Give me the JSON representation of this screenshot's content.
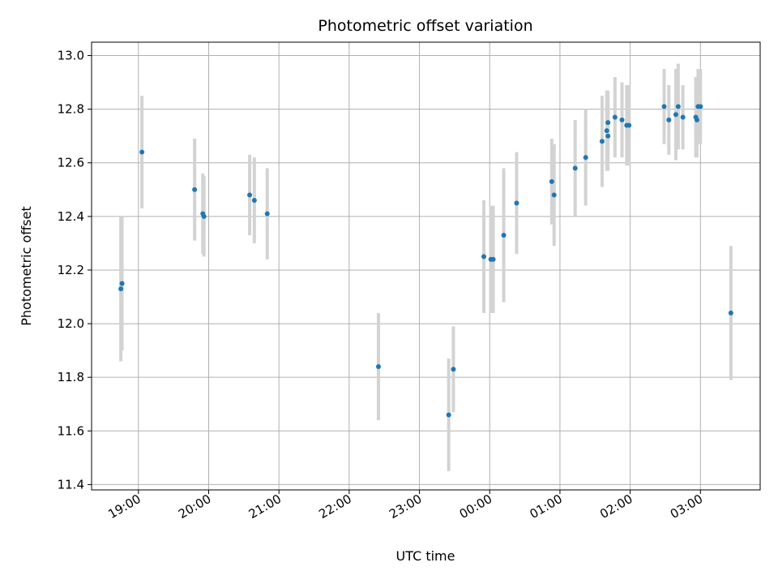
{
  "chart_data": {
    "type": "scatter",
    "title": "Photometric offset variation",
    "xlabel": "UTC time",
    "ylabel": "Photometric offset",
    "xlim": [
      "18:20",
      "03:51"
    ],
    "ylim": [
      11.38,
      13.05
    ],
    "x_tick_labels": [
      "19:00",
      "20:00",
      "21:00",
      "22:00",
      "23:00",
      "00:00",
      "01:00",
      "02:00",
      "03:00"
    ],
    "x_tick_times": [
      "19:00",
      "20:00",
      "21:00",
      "22:00",
      "23:00",
      "00:00",
      "01:00",
      "02:00",
      "03:00"
    ],
    "y_ticks": [
      11.4,
      11.6,
      11.8,
      12.0,
      12.2,
      12.4,
      12.6,
      12.8,
      13.0
    ],
    "grid": true,
    "colors": {
      "marker": "#1f77b4",
      "errorbar": "#d3d3d3",
      "grid": "#b0b0b0"
    },
    "points": [
      {
        "x": "18:45",
        "y": 12.13,
        "err": 0.27
      },
      {
        "x": "18:46",
        "y": 12.15,
        "err": 0.25
      },
      {
        "x": "19:03",
        "y": 12.64,
        "err": 0.21
      },
      {
        "x": "19:48",
        "y": 12.5,
        "err": 0.19
      },
      {
        "x": "19:55",
        "y": 12.41,
        "err": 0.15
      },
      {
        "x": "19:56",
        "y": 12.4,
        "err": 0.15
      },
      {
        "x": "20:35",
        "y": 12.48,
        "err": 0.15
      },
      {
        "x": "20:39",
        "y": 12.46,
        "err": 0.16
      },
      {
        "x": "20:50",
        "y": 12.41,
        "err": 0.17
      },
      {
        "x": "22:25",
        "y": 11.84,
        "err": 0.2
      },
      {
        "x": "23:25",
        "y": 11.66,
        "err": 0.21
      },
      {
        "x": "23:29",
        "y": 11.83,
        "err": 0.16
      },
      {
        "x": "23:55",
        "y": 12.25,
        "err": 0.21
      },
      {
        "x": "00:01",
        "y": 12.24,
        "err": 0.2
      },
      {
        "x": "00:03",
        "y": 12.24,
        "err": 0.2
      },
      {
        "x": "00:12",
        "y": 12.33,
        "err": 0.25
      },
      {
        "x": "00:23",
        "y": 12.45,
        "err": 0.19
      },
      {
        "x": "00:53",
        "y": 12.53,
        "err": 0.16
      },
      {
        "x": "00:55",
        "y": 12.48,
        "err": 0.19
      },
      {
        "x": "01:13",
        "y": 12.58,
        "err": 0.18
      },
      {
        "x": "01:22",
        "y": 12.62,
        "err": 0.18
      },
      {
        "x": "01:36",
        "y": 12.68,
        "err": 0.17
      },
      {
        "x": "01:40",
        "y": 12.72,
        "err": 0.15
      },
      {
        "x": "01:41",
        "y": 12.75,
        "err": 0.12
      },
      {
        "x": "01:41",
        "y": 12.7,
        "err": 0.13
      },
      {
        "x": "01:47",
        "y": 12.77,
        "err": 0.15
      },
      {
        "x": "01:53",
        "y": 12.76,
        "err": 0.14
      },
      {
        "x": "01:57",
        "y": 12.74,
        "err": 0.15
      },
      {
        "x": "01:59",
        "y": 12.74,
        "err": 0.15
      },
      {
        "x": "02:29",
        "y": 12.81,
        "err": 0.14
      },
      {
        "x": "02:33",
        "y": 12.76,
        "err": 0.13
      },
      {
        "x": "02:39",
        "y": 12.78,
        "err": 0.17
      },
      {
        "x": "02:41",
        "y": 12.81,
        "err": 0.16
      },
      {
        "x": "02:45",
        "y": 12.77,
        "err": 0.12
      },
      {
        "x": "02:56",
        "y": 12.77,
        "err": 0.15
      },
      {
        "x": "02:57",
        "y": 12.76,
        "err": 0.14
      },
      {
        "x": "02:58",
        "y": 12.81,
        "err": 0.14
      },
      {
        "x": "03:00",
        "y": 12.81,
        "err": 0.14
      },
      {
        "x": "03:26",
        "y": 12.04,
        "err": 0.25
      }
    ]
  }
}
